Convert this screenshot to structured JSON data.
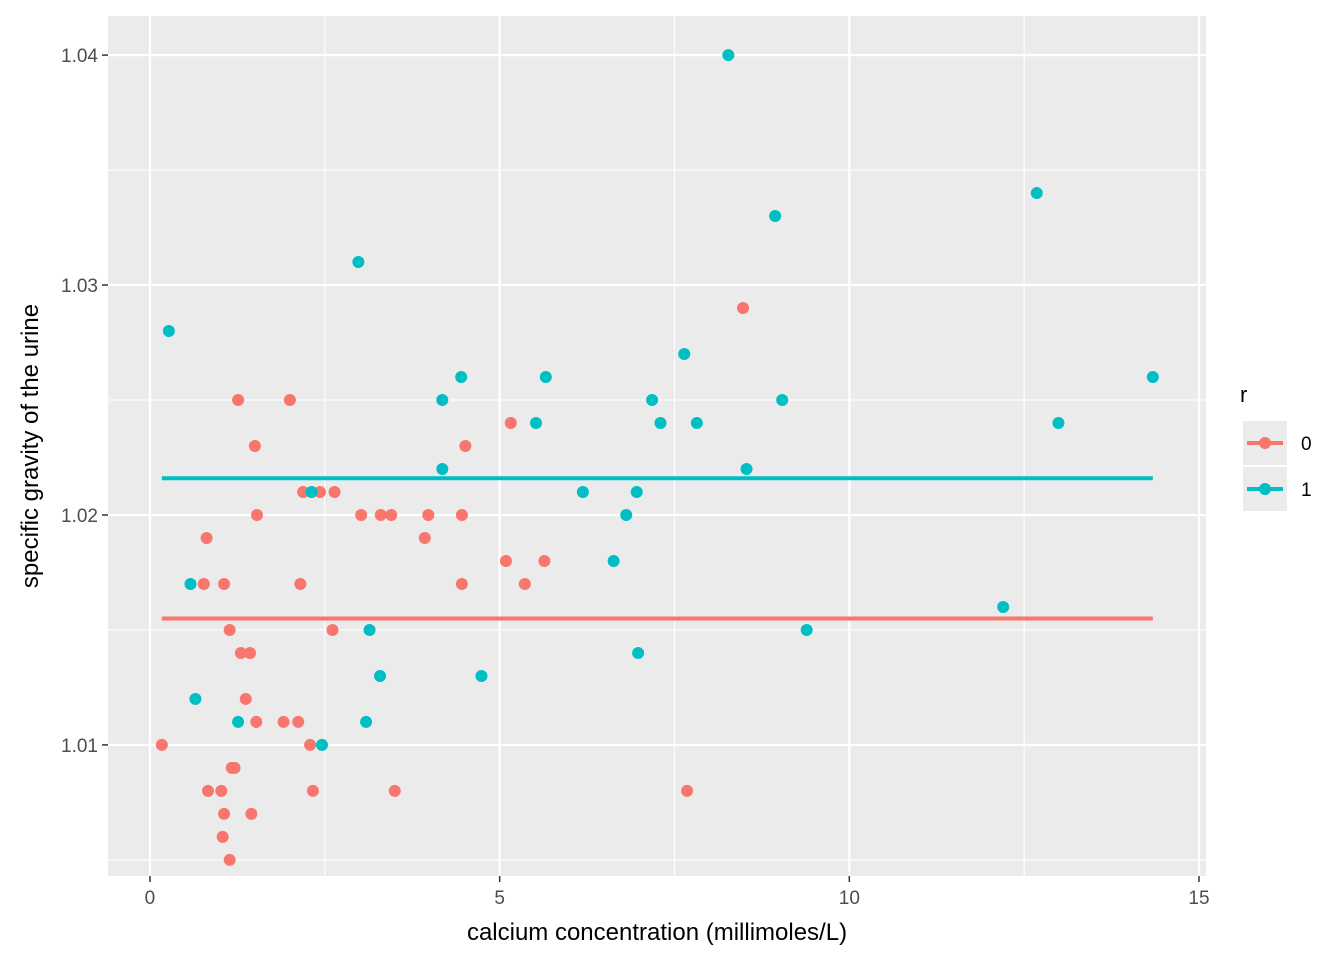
{
  "chart_data": {
    "type": "scatter",
    "xlabel": "calcium concentration (millimoles/L)",
    "ylabel": "specific gravity of the urine",
    "xlim": [
      -0.6,
      15.1
    ],
    "ylim": [
      1.0043,
      1.0417
    ],
    "x_ticks": [
      0,
      5,
      10,
      15
    ],
    "x_tick_labels": [
      "0",
      "5",
      "10",
      "15"
    ],
    "y_ticks": [
      1.01,
      1.02,
      1.03,
      1.04
    ],
    "y_tick_labels": [
      "1.01",
      "1.02",
      "1.03",
      "1.04"
    ],
    "grid": true,
    "legend": {
      "title": "r",
      "position": "right"
    },
    "colors": {
      "0": "#F8766D",
      "1": "#00BFC4",
      "panel": "#EBEBEB",
      "grid": "#FFFFFF"
    },
    "series": [
      {
        "name": "0",
        "color": "#F8766D",
        "points": [
          [
            0.17,
            1.01
          ],
          [
            0.77,
            1.017
          ],
          [
            0.81,
            1.019
          ],
          [
            0.83,
            1.008
          ],
          [
            1.02,
            1.008
          ],
          [
            1.04,
            1.006
          ],
          [
            1.06,
            1.007
          ],
          [
            1.06,
            1.017
          ],
          [
            1.14,
            1.015
          ],
          [
            1.14,
            1.005
          ],
          [
            1.17,
            1.009
          ],
          [
            1.21,
            1.009
          ],
          [
            1.26,
            1.025
          ],
          [
            1.3,
            1.014
          ],
          [
            1.37,
            1.012
          ],
          [
            1.43,
            1.014
          ],
          [
            1.45,
            1.007
          ],
          [
            1.5,
            1.023
          ],
          [
            1.52,
            1.011
          ],
          [
            1.53,
            1.02
          ],
          [
            1.91,
            1.011
          ],
          [
            2.0,
            1.025
          ],
          [
            2.12,
            1.011
          ],
          [
            2.15,
            1.017
          ],
          [
            2.19,
            1.021
          ],
          [
            2.29,
            1.01
          ],
          [
            2.33,
            1.008
          ],
          [
            2.43,
            1.021
          ],
          [
            2.61,
            1.015
          ],
          [
            2.64,
            1.021
          ],
          [
            3.02,
            1.02
          ],
          [
            3.3,
            1.02
          ],
          [
            3.45,
            1.02
          ],
          [
            3.5,
            1.008
          ],
          [
            3.93,
            1.019
          ],
          [
            3.98,
            1.02
          ],
          [
            4.46,
            1.017
          ],
          [
            4.46,
            1.02
          ],
          [
            4.51,
            1.023
          ],
          [
            5.09,
            1.018
          ],
          [
            5.16,
            1.024
          ],
          [
            5.36,
            1.017
          ],
          [
            5.64,
            1.018
          ],
          [
            7.68,
            1.008
          ],
          [
            8.48,
            1.029
          ]
        ],
        "fit_line": {
          "x": [
            0.17,
            14.34
          ],
          "y": [
            1.0155,
            1.0155
          ]
        }
      },
      {
        "name": "1",
        "color": "#00BFC4",
        "points": [
          [
            0.27,
            1.028
          ],
          [
            0.58,
            1.017
          ],
          [
            0.65,
            1.012
          ],
          [
            1.26,
            1.011
          ],
          [
            2.31,
            1.021
          ],
          [
            2.46,
            1.01
          ],
          [
            2.98,
            1.031
          ],
          [
            3.09,
            1.011
          ],
          [
            3.14,
            1.015
          ],
          [
            3.29,
            1.013
          ],
          [
            4.18,
            1.025
          ],
          [
            4.18,
            1.022
          ],
          [
            4.45,
            1.026
          ],
          [
            4.74,
            1.013
          ],
          [
            5.52,
            1.024
          ],
          [
            5.66,
            1.026
          ],
          [
            6.19,
            1.021
          ],
          [
            6.63,
            1.018
          ],
          [
            6.81,
            1.02
          ],
          [
            6.96,
            1.021
          ],
          [
            6.98,
            1.014
          ],
          [
            7.18,
            1.025
          ],
          [
            7.3,
            1.024
          ],
          [
            7.64,
            1.027
          ],
          [
            7.82,
            1.024
          ],
          [
            8.27,
            1.04
          ],
          [
            8.53,
            1.022
          ],
          [
            8.94,
            1.033
          ],
          [
            9.04,
            1.025
          ],
          [
            9.39,
            1.015
          ],
          [
            12.2,
            1.016
          ],
          [
            12.68,
            1.034
          ],
          [
            12.99,
            1.024
          ],
          [
            14.34,
            1.026
          ]
        ],
        "fit_line": {
          "x": [
            0.17,
            14.34
          ],
          "y": [
            1.0216,
            1.0216
          ]
        }
      }
    ]
  }
}
